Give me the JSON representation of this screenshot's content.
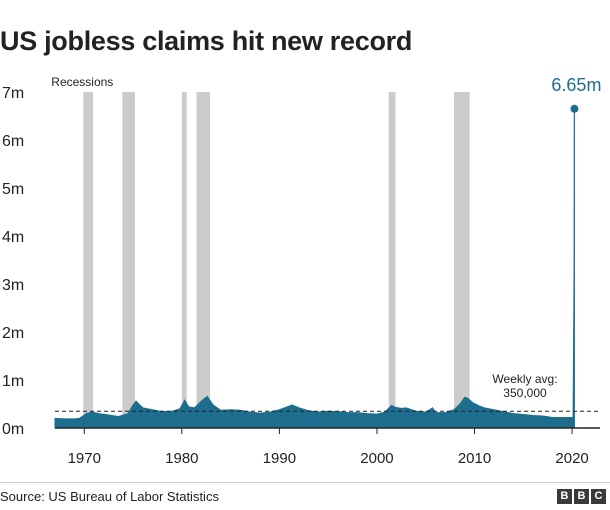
{
  "title": "US jobless claims hit new record",
  "source": "Source: US Bureau of Labor Statistics",
  "logo_letters": [
    "B",
    "B",
    "C"
  ],
  "colors": {
    "area": "#1d6e8e",
    "recession": "#cbcbcb",
    "axis": "#222222",
    "callout": "#1d6e8e"
  },
  "chart_data": {
    "type": "area",
    "title": "US jobless claims hit new record",
    "xlabel": "",
    "ylabel": "",
    "xlim": [
      1967,
      2020.4
    ],
    "ylim": [
      0,
      7000000
    ],
    "x_ticks": [
      1970,
      1980,
      1990,
      2000,
      2010,
      2020
    ],
    "x_tick_labels": [
      "1970",
      "1980",
      "1990",
      "2000",
      "2010",
      "2020"
    ],
    "y_ticks": [
      0,
      1000000,
      2000000,
      3000000,
      4000000,
      5000000,
      6000000,
      7000000
    ],
    "y_tick_labels": [
      "0m",
      "1m",
      "2m",
      "3m",
      "4m",
      "5m",
      "6m",
      "7m"
    ],
    "grid": false,
    "recessions_label": "Recessions",
    "recessions": [
      [
        1969.9,
        1970.9
      ],
      [
        1973.9,
        1975.2
      ],
      [
        1980.0,
        1980.5
      ],
      [
        1981.5,
        1982.9
      ],
      [
        2001.2,
        2001.9
      ],
      [
        2007.9,
        2009.5
      ]
    ],
    "series": [
      {
        "x": [
          1967,
          1968,
          1969,
          1969.5,
          1970.2,
          1970.8,
          1971.5,
          1972.5,
          1973.5,
          1974.5,
          1974.9,
          1975.3,
          1976,
          1977,
          1978,
          1979,
          1979.8,
          1980.3,
          1980.7,
          1981.3,
          1982,
          1982.6,
          1983.2,
          1984,
          1985,
          1986,
          1987,
          1988,
          1989,
          1990,
          1990.8,
          1991.3,
          1992,
          1993,
          1994,
          1995,
          1996,
          1997,
          1998,
          1999,
          2000,
          2000.8,
          2001.5,
          2001.9,
          2002.5,
          2003,
          2004,
          2005,
          2005.7,
          2006,
          2007,
          2007.9,
          2008.5,
          2009.0,
          2009.3,
          2009.8,
          2010.5,
          2011,
          2012,
          2013,
          2014,
          2015,
          2016,
          2017,
          2018,
          2019,
          2019.8,
          2020.1,
          2020.2,
          2020.22,
          2020.24
        ],
        "y": [
          200000,
          190000,
          190000,
          200000,
          300000,
          330000,
          300000,
          270000,
          240000,
          300000,
          450000,
          560000,
          420000,
          380000,
          340000,
          350000,
          400000,
          580000,
          440000,
          420000,
          560000,
          660000,
          480000,
          370000,
          380000,
          370000,
          330000,
          310000,
          330000,
          380000,
          440000,
          480000,
          420000,
          360000,
          330000,
          350000,
          340000,
          320000,
          320000,
          300000,
          290000,
          330000,
          470000,
          430000,
          410000,
          420000,
          350000,
          330000,
          420000,
          320000,
          320000,
          380000,
          500000,
          640000,
          620000,
          530000,
          460000,
          420000,
          380000,
          340000,
          300000,
          280000,
          260000,
          250000,
          220000,
          220000,
          220000,
          215000,
          3300000,
          6650000,
          6650000
        ]
      }
    ],
    "annotations": [
      {
        "label": "6.65m",
        "x": 2020.24,
        "y": 6650000
      },
      {
        "label": "Weekly avg:",
        "sublabel": "350,000",
        "y": 350000
      }
    ]
  }
}
